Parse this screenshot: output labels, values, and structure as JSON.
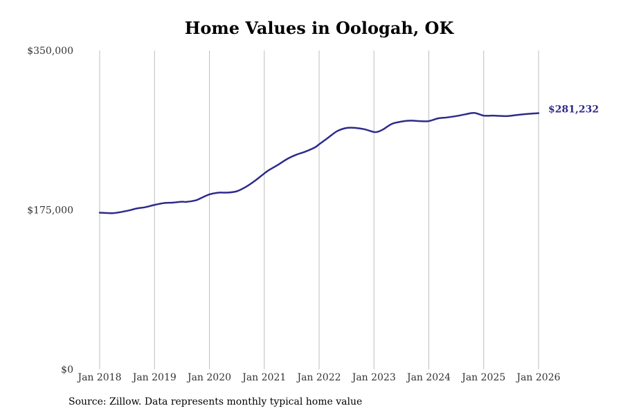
{
  "chart_data": {
    "type": "line",
    "title": "Home Values in Oologah, OK",
    "xlabel": "",
    "ylabel": "",
    "ylim": [
      0,
      350000
    ],
    "grid": "vertical",
    "y_ticks": [
      {
        "value": 0,
        "label": "$0"
      },
      {
        "value": 175000,
        "label": "$175,000"
      },
      {
        "value": 350000,
        "label": "$350,000"
      }
    ],
    "x_ticks": [
      {
        "value": 2018.0,
        "label": "Jan 2018"
      },
      {
        "value": 2019.0,
        "label": "Jan 2019"
      },
      {
        "value": 2020.0,
        "label": "Jan 2020"
      },
      {
        "value": 2021.0,
        "label": "Jan 2021"
      },
      {
        "value": 2022.0,
        "label": "Jan 2022"
      },
      {
        "value": 2023.0,
        "label": "Jan 2023"
      },
      {
        "value": 2024.0,
        "label": "Jan 2024"
      },
      {
        "value": 2025.0,
        "label": "Jan 2025"
      },
      {
        "value": 2026.0,
        "label": "Jan 2026"
      }
    ],
    "xlim": [
      2018.0,
      2026.0
    ],
    "series": [
      {
        "name": "Typical home value",
        "color": "#2e2a8a",
        "x": [
          2018.0,
          2018.25,
          2018.5,
          2018.67,
          2018.83,
          2019.0,
          2019.17,
          2019.33,
          2019.5,
          2019.58,
          2019.75,
          2019.83,
          2020.0,
          2020.17,
          2020.33,
          2020.5,
          2020.67,
          2020.83,
          2021.0,
          2021.08,
          2021.25,
          2021.42,
          2021.58,
          2021.75,
          2021.92,
          2022.0,
          2022.17,
          2022.33,
          2022.5,
          2022.67,
          2022.83,
          2023.0,
          2023.08,
          2023.17,
          2023.33,
          2023.5,
          2023.67,
          2023.83,
          2024.0,
          2024.17,
          2024.33,
          2024.5,
          2024.67,
          2024.83,
          2025.0,
          2025.17,
          2025.42,
          2025.58,
          2025.83,
          2026.0
        ],
        "values": [
          172000,
          171500,
          174000,
          176500,
          178000,
          180500,
          182500,
          183000,
          184000,
          183800,
          185500,
          187500,
          192000,
          194000,
          194000,
          195500,
          200500,
          207000,
          215000,
          218500,
          224500,
          231000,
          235500,
          239000,
          243500,
          247000,
          254500,
          261500,
          265000,
          265000,
          263500,
          260500,
          261000,
          263500,
          269500,
          272000,
          273000,
          272500,
          272500,
          275500,
          276500,
          278000,
          280000,
          281500,
          278500,
          278500,
          278000,
          279000,
          280500,
          281232
        ]
      }
    ],
    "end_label": "$281,232",
    "source": "Source: Zillow. Data represents monthly typical home value"
  }
}
